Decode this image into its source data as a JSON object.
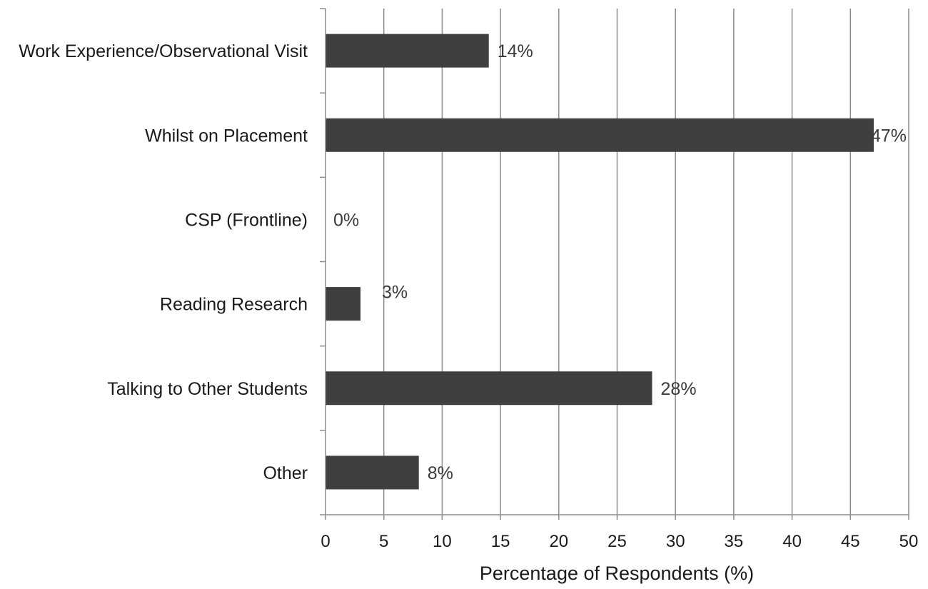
{
  "chart_data": {
    "type": "bar",
    "orientation": "horizontal",
    "categories": [
      "Work Experience/Observational  Visit",
      "Whilst on Placement",
      "CSP (Frontline)",
      "Reading  Research",
      "Talking to Other Students",
      "Other"
    ],
    "values": [
      14,
      47,
      0,
      3,
      28,
      8
    ],
    "data_labels": [
      "14%",
      "47%",
      "0%",
      "3%",
      "28%",
      "8%"
    ],
    "title": "",
    "xlabel": "Percentage of Respondents (%)",
    "ylabel": "",
    "xlim": [
      0,
      50
    ],
    "x_ticks": [
      0,
      5,
      10,
      15,
      20,
      25,
      30,
      35,
      40,
      45,
      50
    ],
    "x_tick_labels": [
      "0",
      "5",
      "10",
      "15",
      "20",
      "25",
      "30",
      "35",
      "40",
      "45",
      "50"
    ],
    "grid": "vertical",
    "legend": "none",
    "colors": {
      "bar": "#3f3f3f",
      "grid": "#8c8c8c",
      "axis": "#8c8c8c"
    }
  }
}
